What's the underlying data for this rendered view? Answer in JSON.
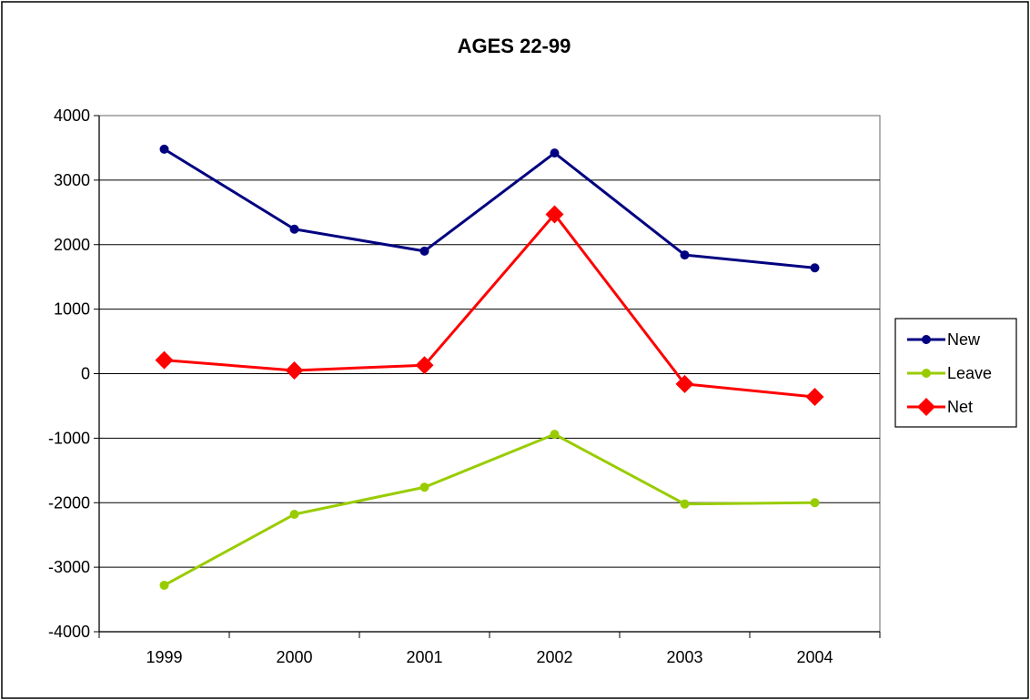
{
  "chart_data": {
    "type": "line",
    "title": "AGES 22-99",
    "xlabel": "",
    "ylabel": "",
    "categories": [
      "1999",
      "2000",
      "2001",
      "2002",
      "2003",
      "2004"
    ],
    "ylim": [
      -4000,
      4000
    ],
    "yticks": [
      4000,
      3000,
      2000,
      1000,
      0,
      -1000,
      -2000,
      -3000,
      -4000
    ],
    "grid": true,
    "legend": "right",
    "series": [
      {
        "name": "New",
        "color": "#000080",
        "marker": "circle",
        "values": [
          3480,
          2240,
          1900,
          3420,
          1840,
          1640
        ]
      },
      {
        "name": "Leave",
        "color": "#99CC00",
        "marker": "circle",
        "values": [
          -3280,
          -2180,
          -1760,
          -940,
          -2020,
          -2000
        ]
      },
      {
        "name": "Net",
        "color": "#FF0000",
        "marker": "diamond",
        "values": [
          210,
          50,
          130,
          2470,
          -160,
          -360
        ]
      }
    ]
  }
}
